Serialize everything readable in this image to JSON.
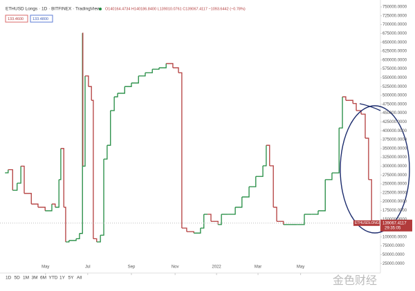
{
  "chart_data": {
    "type": "line",
    "title": "ETHUSD Longs · 1D · BITFINEX · TradingView",
    "ohlc_text": "O140164.4734 H140186.8400 L139010.0761 C139067.4117 −1093.6442 (−0.78%)",
    "indicator_values": [
      "133.4600",
      "133.4800"
    ],
    "series_tag": "ETHUSDLONGS",
    "countdown": "29:35:05",
    "range_buttons": [
      "1D",
      "5D",
      "1M",
      "3M",
      "6M",
      "YTD",
      "1Y",
      "5Y",
      "All"
    ],
    "watermark": "金色财经",
    "up_color": "#1f8a3f",
    "down_color": "#b23b3b",
    "x": [
      0,
      0.7,
      1.9,
      3.1,
      4.1,
      5,
      6.9,
      8.7,
      10.6,
      12.4,
      13.3,
      14.3,
      14.8,
      15.6,
      16.1,
      17,
      18.9,
      19.8,
      20.6,
      20.7,
      21.3,
      22.2,
      23,
      23.5,
      24.4,
      25.4,
      26.3,
      27.2,
      28.1,
      29.1,
      30,
      31.9,
      33.7,
      35.6,
      37.4,
      39.3,
      41.1,
      43,
      44.8,
      46.3,
      47.2,
      48.5,
      50.4,
      52.2,
      53.1,
      54.1,
      55,
      56.9,
      57.8,
      59.6,
      61.5,
      63.3,
      65.2,
      67,
      68.9,
      69.8,
      70.7,
      71.7,
      72.6,
      74.4,
      76.3,
      78.1,
      80,
      81.9,
      83.7,
      85.6,
      87.4,
      89.3,
      90.2,
      91.1,
      93,
      93.9,
      95.2,
      96.3,
      97.2,
      98
    ],
    "values": [
      281250,
      290000,
      232000,
      252000,
      300000,
      223000,
      193000,
      184000,
      174000,
      193000,
      184000,
      262000,
      350000,
      184000,
      86000,
      90000,
      95000,
      110000,
      676000,
      300000,
      555000,
      525000,
      486000,
      95000,
      86000,
      105000,
      320000,
      359000,
      457000,
      496000,
      506000,
      525000,
      535000,
      555000,
      564000,
      574000,
      578000,
      590000,
      578000,
      564000,
      125000,
      115000,
      111000,
      125000,
      164000,
      164000,
      144000,
      135000,
      164000,
      164000,
      184000,
      213000,
      242000,
      271000,
      301000,
      359000,
      301000,
      184000,
      144000,
      135000,
      135000,
      135000,
      164000,
      164000,
      174000,
      262000,
      281000,
      408000,
      496000,
      486000,
      477000,
      457000,
      447000,
      379000,
      262000,
      139067.4117
    ],
    "xlim": [
      0,
      100
    ],
    "xticks": [
      {
        "value": 10.7,
        "label": "May"
      },
      {
        "value": 22,
        "label": "Jul"
      },
      {
        "value": 33.7,
        "label": "Sep"
      },
      {
        "value": 45.4,
        "label": "Nov"
      },
      {
        "value": 56.5,
        "label": "2022"
      },
      {
        "value": 67.6,
        "label": "Mar"
      },
      {
        "value": 79,
        "label": "May"
      }
    ],
    "ylim": [
      -1950,
      769530
    ],
    "yticks": [
      {
        "value": 750000,
        "label": "750000.0000"
      },
      {
        "value": 725000,
        "label": "725000.0000"
      },
      {
        "value": 700000,
        "label": "700000.0000"
      },
      {
        "value": 675000,
        "label": "675000.0000"
      },
      {
        "value": 650000,
        "label": "650000.0000"
      },
      {
        "value": 625000,
        "label": "625000.0000"
      },
      {
        "value": 600000,
        "label": "600000.0000"
      },
      {
        "value": 575000,
        "label": "575000.0000"
      },
      {
        "value": 550000,
        "label": "550000.0000"
      },
      {
        "value": 525000,
        "label": "525000.0000"
      },
      {
        "value": 500000,
        "label": "500000.0000"
      },
      {
        "value": 475000,
        "label": "475000.0000"
      },
      {
        "value": 450000,
        "label": "450000.0000"
      },
      {
        "value": 425000,
        "label": "425000.0000"
      },
      {
        "value": 400000,
        "label": "400000.0000"
      },
      {
        "value": 375000,
        "label": "375000.0000"
      },
      {
        "value": 350000,
        "label": "350000.0000"
      },
      {
        "value": 325000,
        "label": "325000.0000"
      },
      {
        "value": 300000,
        "label": "300000.0000"
      },
      {
        "value": 275000,
        "label": "275000.0000"
      },
      {
        "value": 250000,
        "label": "250000.0000"
      },
      {
        "value": 225000,
        "label": "225000.0000"
      },
      {
        "value": 200000,
        "label": "200000.0000"
      },
      {
        "value": 175000,
        "label": "175000.0000"
      },
      {
        "value": 150000,
        "label": "150000.0000"
      },
      {
        "value": 125000,
        "label": "125000.0000"
      },
      {
        "value": 100000,
        "label": "100000.0000"
      },
      {
        "value": 75000,
        "label": "75000.0000"
      },
      {
        "value": 50000,
        "label": "50000.0000"
      },
      {
        "value": 25000,
        "label": "25000.0000"
      }
    ]
  }
}
